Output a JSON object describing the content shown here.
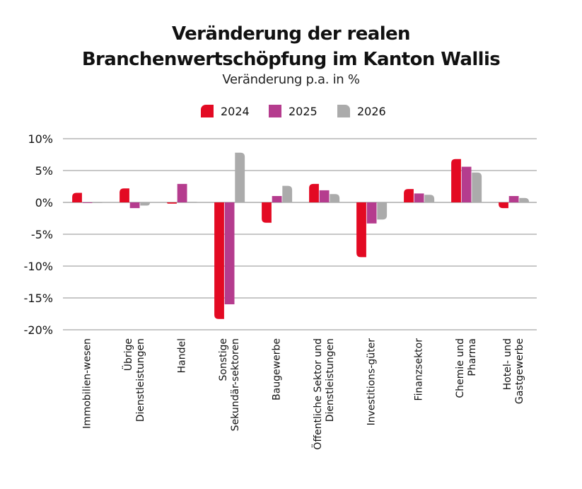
{
  "chart_data": {
    "type": "bar",
    "title": [
      "Veränderung der realen",
      "Branchenwertschöpfung im Kanton Wallis"
    ],
    "subtitle": "Veränderung p.a. in %",
    "xlabel": "",
    "ylabel": "",
    "ylim": [
      -20,
      10
    ],
    "yticks": [
      10,
      5,
      0,
      -5,
      -10,
      -15,
      -20
    ],
    "ytick_labels": [
      "10%",
      "5%",
      "0%",
      "-5%",
      "-10%",
      "-15%",
      "-20%"
    ],
    "grid": true,
    "legend_position": "top-center",
    "categories": [
      [
        "Immobilien-wesen"
      ],
      [
        "Übrige",
        "Dienstleistungen"
      ],
      [
        "Handel"
      ],
      [
        "Sonstige",
        "Sekundär-sektoren"
      ],
      [
        "Baugewerbe"
      ],
      [
        "Öffentliche Sektor und",
        "Dienstleistungen"
      ],
      [
        "Investitions-güter"
      ],
      [
        "Finanzsektor"
      ],
      [
        "Chemie und",
        "Pharma"
      ],
      [
        "Hotel- und",
        "Gastgewerbe"
      ]
    ],
    "series": [
      {
        "name": "2024",
        "color": "#E30A23",
        "values": [
          1.5,
          2.2,
          -0.2,
          -18.3,
          -3.2,
          2.9,
          -8.6,
          2.1,
          6.8,
          -0.9
        ]
      },
      {
        "name": "2025",
        "color": "#B53C8E",
        "values": [
          -0.1,
          -0.9,
          2.9,
          -16.0,
          1.0,
          1.9,
          -3.3,
          1.4,
          5.6,
          1.0
        ]
      },
      {
        "name": "2026",
        "color": "#ABABAB",
        "values": [
          -0.1,
          -0.5,
          0.1,
          7.8,
          2.6,
          1.3,
          -2.7,
          1.2,
          4.7,
          0.7
        ]
      }
    ]
  }
}
